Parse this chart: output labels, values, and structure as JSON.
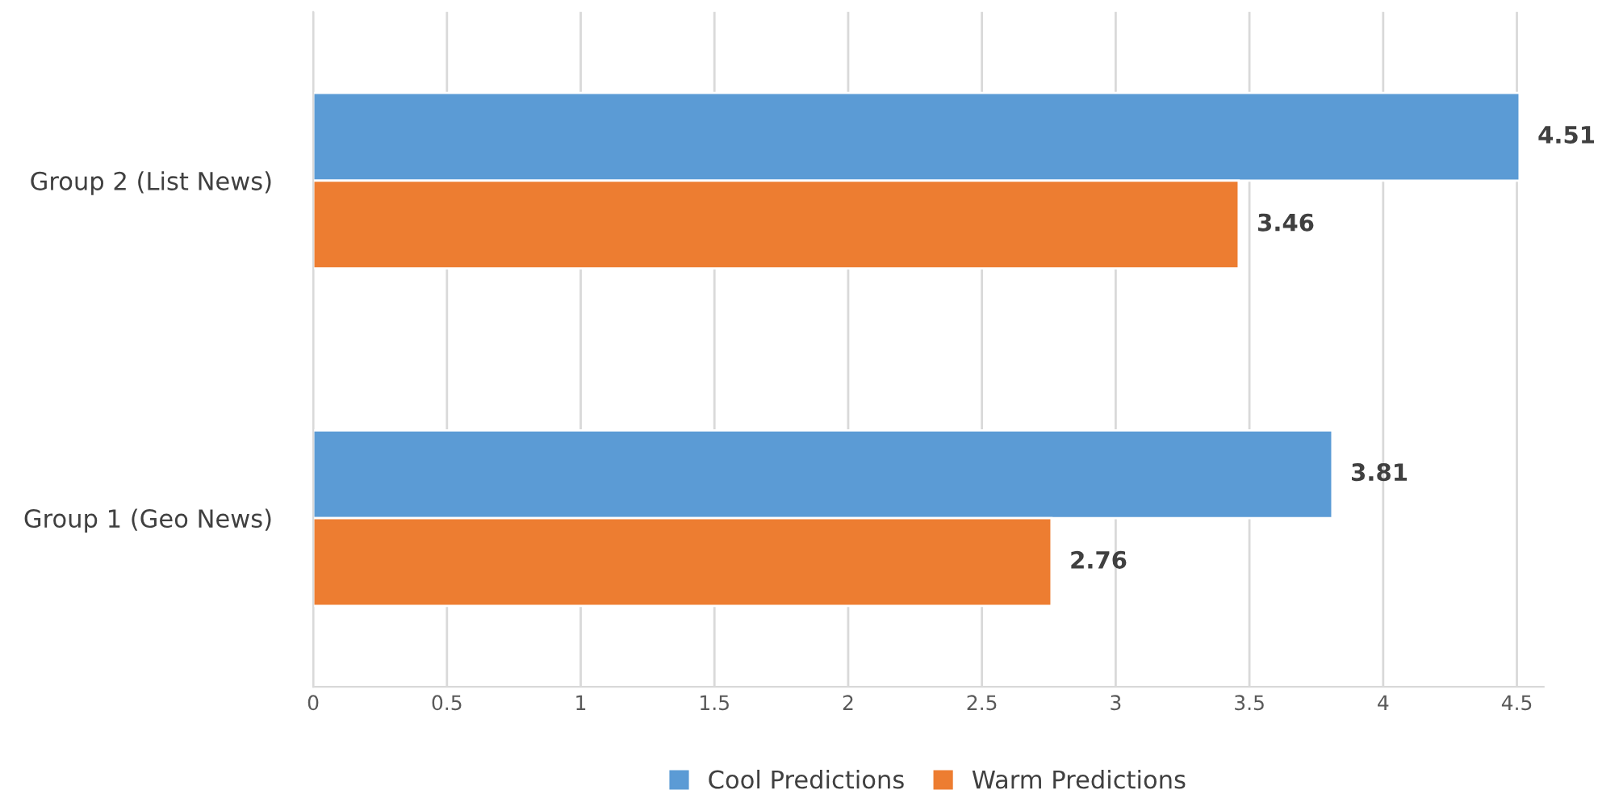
{
  "chart_data": {
    "type": "bar",
    "orientation": "horizontal",
    "categories": [
      "Group 2 (List News)",
      "Group 1 (Geo News)"
    ],
    "series": [
      {
        "name": "Cool Predictions",
        "color": "#5b9bd5",
        "values": [
          4.51,
          3.81
        ]
      },
      {
        "name": "Warm Predictions",
        "color": "#ed7d31",
        "values": [
          3.46,
          2.76
        ]
      }
    ],
    "xlim": [
      0,
      4.6
    ],
    "xticks": [
      0,
      0.5,
      1,
      1.5,
      2,
      2.5,
      3,
      3.5,
      4,
      4.5
    ],
    "grid": "x",
    "legend": "bottom",
    "data_labels": true
  }
}
